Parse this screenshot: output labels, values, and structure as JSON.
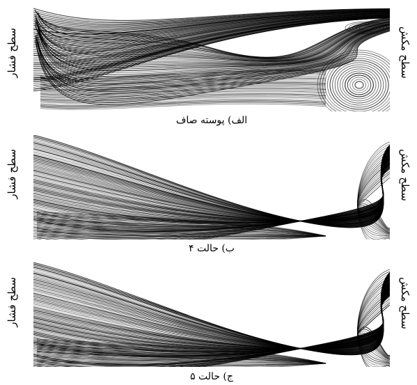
{
  "labels": {
    "left_side": "سطح فشار",
    "right_side": "سطح مکش"
  },
  "panels": [
    {
      "caption": "الف) پوسته صاف"
    },
    {
      "caption": "ب) حالت ۴"
    },
    {
      "caption": "ج) حالت ۵"
    }
  ]
}
